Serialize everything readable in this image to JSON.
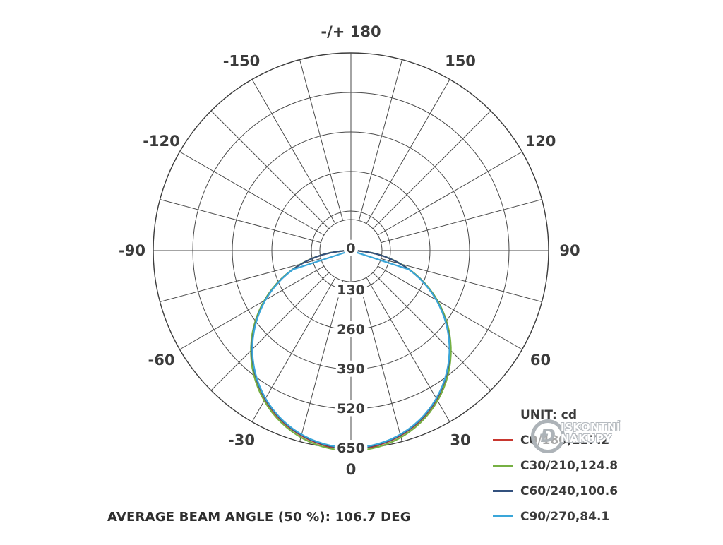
{
  "chart_data": {
    "type": "line",
    "subtype": "polar-photometric",
    "unit_label": "UNIT: cd",
    "radial_max": 650,
    "radial_ticks": [
      0,
      130,
      260,
      390,
      520,
      650
    ],
    "angle_step_deg": 15,
    "angle_labels": [
      {
        "text": "0",
        "deg": 0
      },
      {
        "text": "30",
        "deg": 30
      },
      {
        "text": "60",
        "deg": 60
      },
      {
        "text": "90",
        "deg": 90
      },
      {
        "text": "120",
        "deg": 120
      },
      {
        "text": "150",
        "deg": 150
      },
      {
        "text": "-/+ 180",
        "deg": 180
      },
      {
        "text": "-150",
        "deg": -150
      },
      {
        "text": "-120",
        "deg": -120
      },
      {
        "text": "-90",
        "deg": -90
      },
      {
        "text": "-60",
        "deg": -60
      },
      {
        "text": "-30",
        "deg": -30
      }
    ],
    "series": [
      {
        "name": "C0/180,117.2",
        "color": "#c8372f",
        "max_cd": 652,
        "cutoff_deg": 90
      },
      {
        "name": "C30/210,124.8",
        "color": "#76b043",
        "max_cd": 658,
        "cutoff_deg": 90
      },
      {
        "name": "C60/240,100.6",
        "color": "#33517e",
        "max_cd": 650,
        "cutoff_deg": 88
      },
      {
        "name": "C90/270,84.1",
        "color": "#3aa6d9",
        "max_cd": 648,
        "cutoff_deg": 72
      }
    ],
    "footer": "AVERAGE BEAM ANGLE (50 %): 106.7 DEG"
  },
  "watermark": {
    "letter": "Ð",
    "line1": "ISKONTNÍ",
    "line2": "NÁKUPY"
  }
}
